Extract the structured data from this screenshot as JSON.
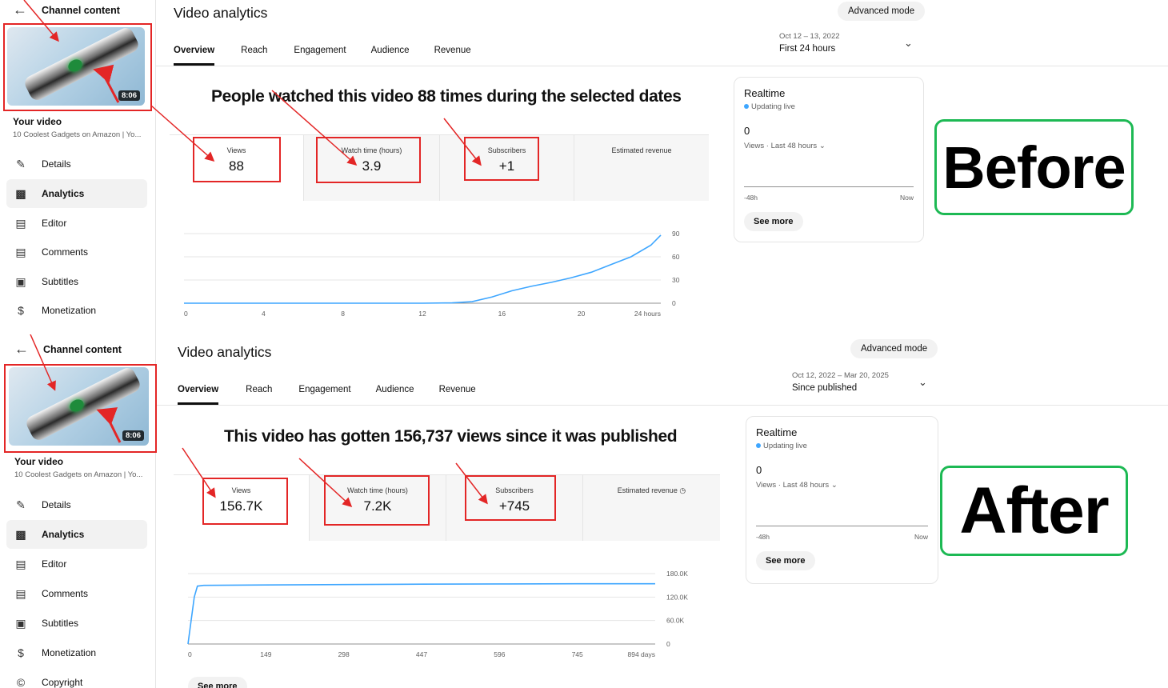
{
  "before": {
    "sidebar": {
      "back_label": "Channel content",
      "duration": "8:06",
      "your_video_label": "Your video",
      "video_title": "10 Coolest Gadgets on Amazon | Yo...",
      "items": [
        {
          "label": "Details",
          "icon": "pencil-icon"
        },
        {
          "label": "Analytics",
          "icon": "bar-chart-icon"
        },
        {
          "label": "Editor",
          "icon": "film-icon"
        },
        {
          "label": "Comments",
          "icon": "comment-icon"
        },
        {
          "label": "Subtitles",
          "icon": "subtitles-icon"
        },
        {
          "label": "Monetization",
          "icon": "dollar-icon"
        }
      ]
    },
    "title": "Video analytics",
    "advanced_mode": "Advanced mode",
    "tabs": [
      "Overview",
      "Reach",
      "Engagement",
      "Audience",
      "Revenue"
    ],
    "date_range": "Oct 12 – 13, 2022",
    "date_label": "First 24 hours",
    "headline": "People watched this video 88 times during the selected dates",
    "metrics": [
      {
        "label": "Views",
        "value": "88"
      },
      {
        "label": "Watch time (hours)",
        "value": "3.9"
      },
      {
        "label": "Subscribers",
        "value": "+1"
      },
      {
        "label": "Estimated revenue",
        "value": ""
      }
    ],
    "chart_data": {
      "type": "line",
      "x_ticks": [
        "0",
        "4",
        "8",
        "12",
        "16",
        "20",
        "24 hours"
      ],
      "y_ticks": [
        "90",
        "60",
        "30",
        "0"
      ],
      "ylim": [
        0,
        90
      ],
      "x": [
        0,
        4,
        8,
        12,
        13.5,
        14.5,
        15.5,
        16.5,
        17.5,
        18.5,
        19.5,
        20.5,
        21.5,
        22.5,
        23.5,
        24
      ],
      "values": [
        0,
        0,
        0,
        0,
        0.5,
        2,
        8,
        16,
        22,
        27,
        33,
        40,
        50,
        60,
        75,
        88
      ],
      "color": "#3ea6ff"
    },
    "realtime": {
      "title": "Realtime",
      "live": "Updating live",
      "count": "0",
      "views_label": "Views · Last 48 hours",
      "start": "-48h",
      "end": "Now",
      "button": "See more"
    },
    "stamp": "Before"
  },
  "after": {
    "sidebar": {
      "back_label": "Channel content",
      "duration": "8:06",
      "your_video_label": "Your video",
      "video_title": "10 Coolest Gadgets on Amazon | Yo...",
      "items": [
        {
          "label": "Details",
          "icon": "pencil-icon"
        },
        {
          "label": "Analytics",
          "icon": "bar-chart-icon"
        },
        {
          "label": "Editor",
          "icon": "film-icon"
        },
        {
          "label": "Comments",
          "icon": "comment-icon"
        },
        {
          "label": "Subtitles",
          "icon": "subtitles-icon"
        },
        {
          "label": "Monetization",
          "icon": "dollar-icon"
        },
        {
          "label": "Copyright",
          "icon": "copyright-icon"
        }
      ]
    },
    "title": "Video analytics",
    "advanced_mode": "Advanced mode",
    "tabs": [
      "Overview",
      "Reach",
      "Engagement",
      "Audience",
      "Revenue"
    ],
    "date_range": "Oct 12, 2022 – Mar 20, 2025",
    "date_label": "Since published",
    "headline": "This video has gotten 156,737 views since it was published",
    "metrics": [
      {
        "label": "Views",
        "value": "156.7K"
      },
      {
        "label": "Watch time (hours)",
        "value": "7.2K"
      },
      {
        "label": "Subscribers",
        "value": "+745"
      },
      {
        "label": "Estimated revenue",
        "value": ""
      }
    ],
    "chart_data": {
      "type": "line",
      "x_ticks": [
        "0",
        "149",
        "298",
        "447",
        "596",
        "745",
        "894 days"
      ],
      "y_ticks": [
        "180.0K",
        "120.0K",
        "60.0K",
        "0"
      ],
      "ylim": [
        0,
        180000
      ],
      "x": [
        0,
        6,
        12,
        18,
        30,
        149,
        298,
        447,
        596,
        745,
        894
      ],
      "values": [
        0,
        60000,
        120000,
        148000,
        150000,
        151000,
        152000,
        153000,
        153500,
        154000,
        154000
      ],
      "color": "#3ea6ff"
    },
    "realtime": {
      "title": "Realtime",
      "live": "Updating live",
      "count": "0",
      "views_label": "Views · Last 48 hours",
      "start": "-48h",
      "end": "Now",
      "button": "See more"
    },
    "see_more_bottom": "See more",
    "stamp": "After"
  }
}
